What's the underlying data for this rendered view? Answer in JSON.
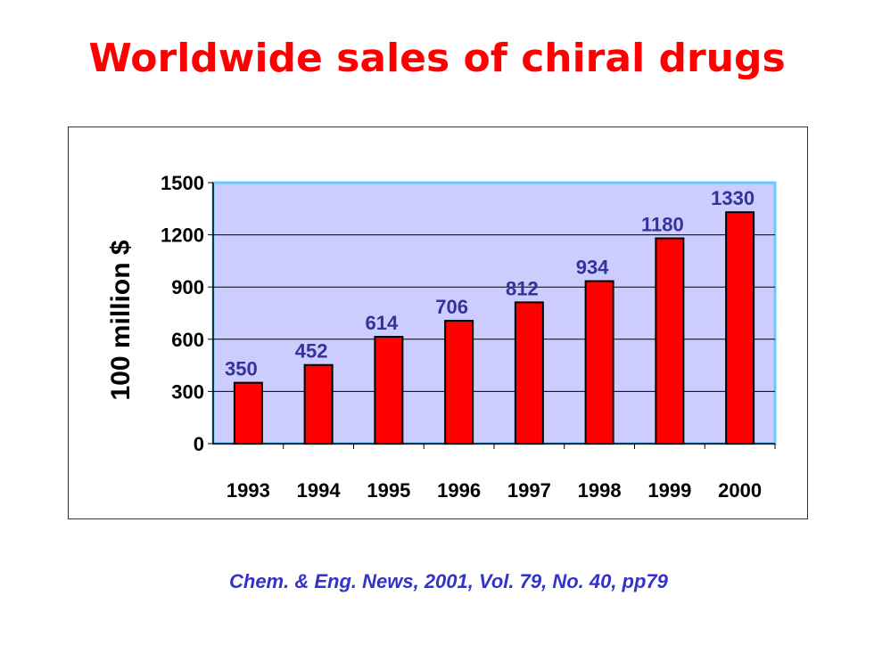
{
  "title": "Worldwide sales of chiral drugs",
  "citation": "Chem. & Eng. News, 2001, Vol. 79, No. 40, pp79",
  "chart_data": {
    "type": "bar",
    "categories": [
      "1993",
      "1994",
      "1995",
      "1996",
      "1997",
      "1998",
      "1999",
      "2000"
    ],
    "values": [
      350,
      452,
      614,
      706,
      812,
      934,
      1180,
      1330
    ],
    "data_labels": [
      "350",
      "452",
      "614",
      "706",
      "812",
      "934",
      "1180",
      "1330"
    ],
    "ylabel": "100 million $",
    "xlabel": "",
    "ylim": [
      0,
      1500
    ],
    "yticks": [
      0,
      300,
      600,
      900,
      1200,
      1500
    ],
    "grid": true,
    "colors": {
      "bar": "#ff0000",
      "bar_border": "#000000",
      "plot_background": "#ccccff",
      "plot_border": "#66ccff",
      "data_label": "#333399",
      "title": "#ff0000",
      "citation": "#3333cc"
    }
  }
}
